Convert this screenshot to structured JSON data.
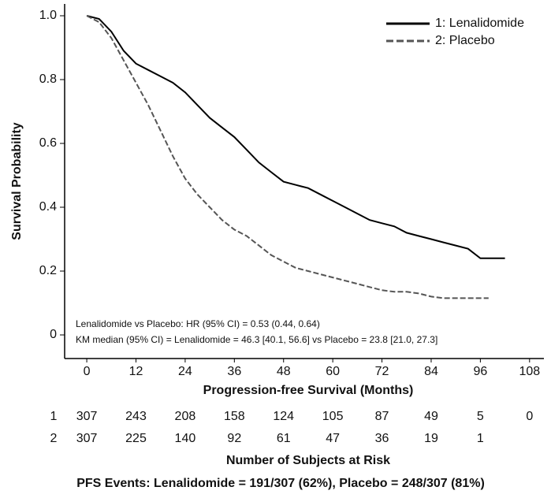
{
  "chart_data": {
    "type": "line",
    "x_label": "Progression-free Survival (Months)",
    "y_label": "Survival Probability",
    "xlim": [
      -5.4,
      111.5
    ],
    "ylim": [
      -0.074,
      1.037
    ],
    "xticks": [
      0,
      12,
      24,
      36,
      48,
      60,
      72,
      84,
      96,
      108
    ],
    "yticks": [
      0,
      0.2,
      0.4,
      0.6,
      0.8,
      {
        "value": 1,
        "label": "1.0"
      }
    ],
    "legend": "top-right",
    "series": [
      {
        "name": "1: Lenalidomide",
        "color": "#000000",
        "style": "solid",
        "x": [
          0,
          3,
          6,
          9,
          12,
          15,
          18,
          21,
          24,
          27,
          30,
          33,
          36,
          39,
          42,
          45,
          48,
          51,
          54,
          57,
          60,
          63,
          66,
          69,
          72,
          75,
          78,
          81,
          84,
          87,
          90,
          93,
          96,
          102
        ],
        "values": [
          1.0,
          0.99,
          0.95,
          0.89,
          0.85,
          0.83,
          0.81,
          0.79,
          0.76,
          0.72,
          0.68,
          0.65,
          0.62,
          0.58,
          0.54,
          0.51,
          0.48,
          0.47,
          0.46,
          0.44,
          0.42,
          0.4,
          0.38,
          0.36,
          0.35,
          0.34,
          0.32,
          0.31,
          0.3,
          0.29,
          0.28,
          0.27,
          0.24,
          0.24
        ]
      },
      {
        "name": "2: Placebo",
        "color": "#555555",
        "style": "dashed",
        "x": [
          0,
          3,
          6,
          9,
          12,
          15,
          18,
          21,
          24,
          27,
          30,
          33,
          36,
          39,
          42,
          45,
          48,
          51,
          54,
          57,
          60,
          63,
          66,
          69,
          72,
          75,
          78,
          81,
          84,
          87,
          90,
          93,
          98
        ],
        "values": [
          1.0,
          0.98,
          0.93,
          0.86,
          0.79,
          0.72,
          0.64,
          0.56,
          0.49,
          0.44,
          0.4,
          0.36,
          0.33,
          0.31,
          0.28,
          0.25,
          0.23,
          0.21,
          0.2,
          0.19,
          0.18,
          0.17,
          0.16,
          0.15,
          0.14,
          0.135,
          0.135,
          0.13,
          0.12,
          0.115,
          0.115,
          0.115,
          0.115
        ]
      }
    ],
    "annotations": [
      "Lenalidomide vs Placebo: HR (95% CI) = 0.53 (0.44, 0.64)",
      "KM median (95% CI) = Lenalidomide = 46.3 [40.1, 56.6] vs Placebo = 23.8 [21.0, 27.3]"
    ],
    "risk_table": {
      "title": "Number of Subjects at Risk",
      "rows": [
        {
          "label": "1",
          "counts": [
            307,
            243,
            208,
            158,
            124,
            105,
            87,
            49,
            5,
            0
          ]
        },
        {
          "label": "2",
          "counts": [
            307,
            225,
            140,
            92,
            61,
            47,
            36,
            19,
            1
          ]
        }
      ]
    },
    "footnote": "PFS Events: Lenalidomide = 191/307 (62%), Placebo = 248/307 (81%)"
  }
}
